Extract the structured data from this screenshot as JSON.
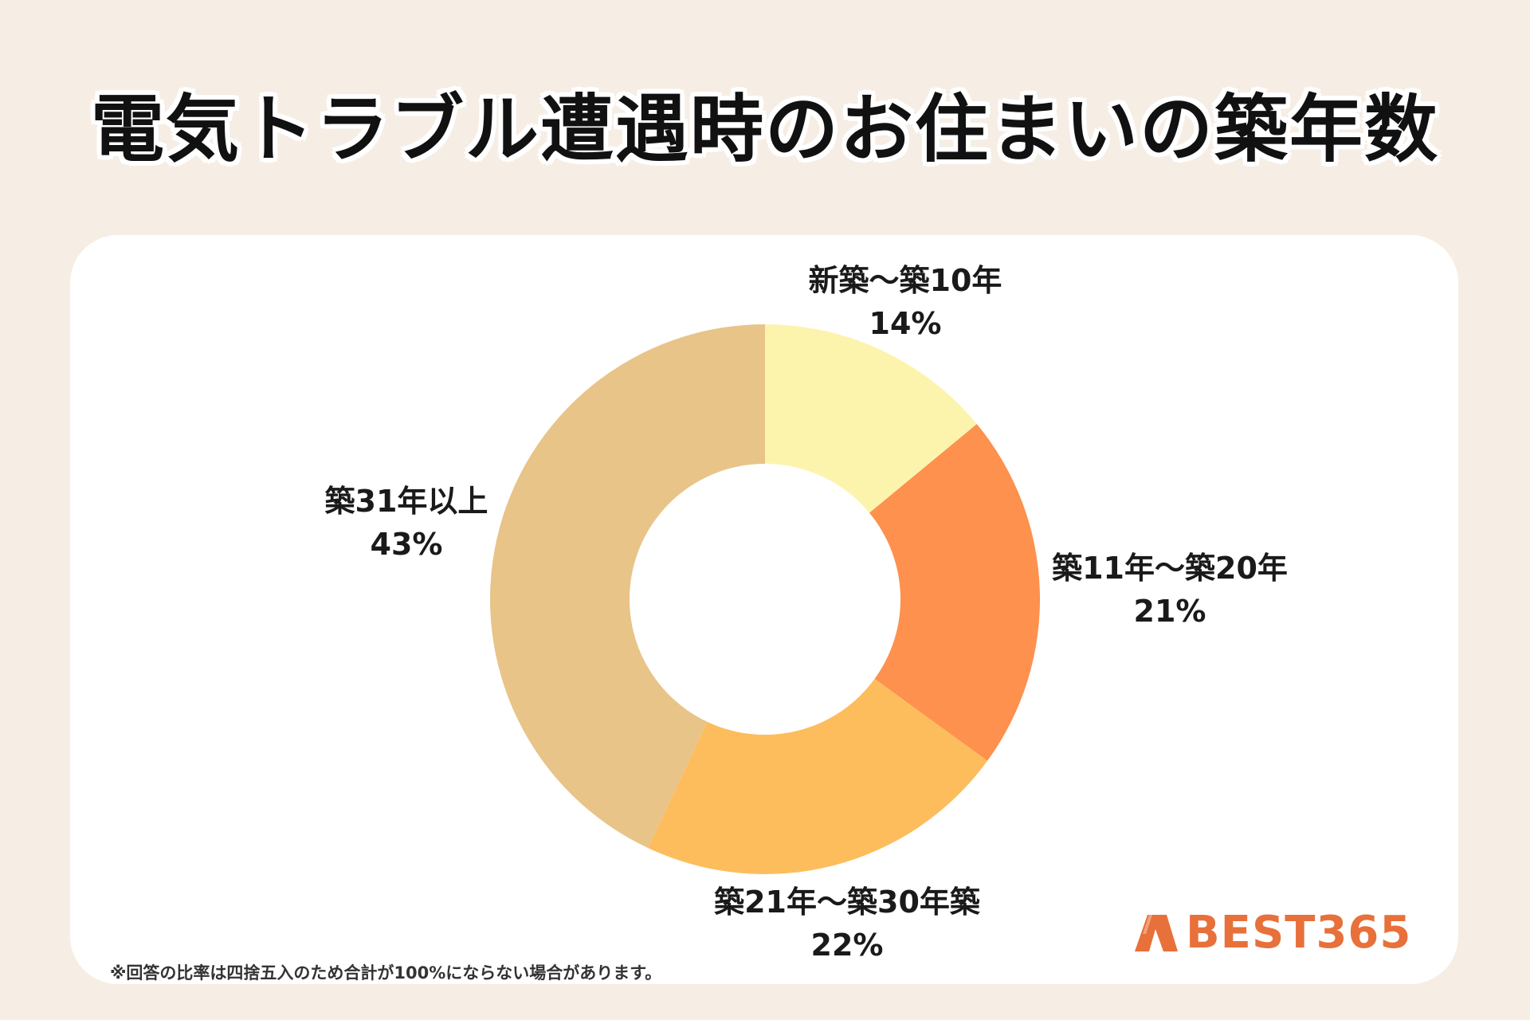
{
  "colors": {
    "background": "#f6ede4",
    "card": "#ffffff",
    "brand": "#e8703a"
  },
  "chart_data": {
    "type": "pie",
    "title": "電気トラブル遭遇時のお住まいの築年数",
    "donut": true,
    "start": "12 o'clock, clockwise",
    "slices": [
      {
        "label": "新築〜築10年",
        "value": 14,
        "value_label": "14%",
        "color": "#fcf4ad"
      },
      {
        "label": "築11年〜築20年",
        "value": 21,
        "value_label": "21%",
        "color": "#fd914d"
      },
      {
        "label": "築21年〜築30年築",
        "value": 22,
        "value_label": "22%",
        "color": "#fdbd5d"
      },
      {
        "label": "築31年以上",
        "value": 43,
        "value_label": "43%",
        "color": "#e8c489"
      }
    ]
  },
  "footnote": "※回答の比率は四捨五入のため合計が100%にならない場合があります。",
  "logo": {
    "text": "BEST365",
    "icon": "best365-logo-mark-icon"
  }
}
